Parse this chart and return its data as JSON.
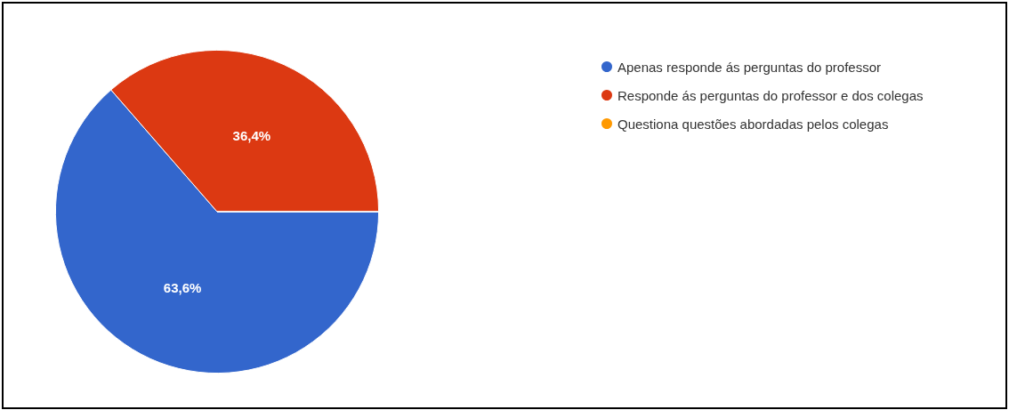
{
  "chart_data": {
    "type": "pie",
    "categories": [
      "Apenas responde ás perguntas do professor",
      "Responde ás perguntas do professor e dos colegas",
      "Questiona questões abordadas pelos colegas"
    ],
    "values": [
      63.6,
      36.4,
      0
    ],
    "colors": [
      "#3366cc",
      "#dc3912",
      "#ff9900"
    ],
    "value_labels": [
      "63,6%",
      "36,4%",
      null
    ],
    "legend": "right"
  }
}
